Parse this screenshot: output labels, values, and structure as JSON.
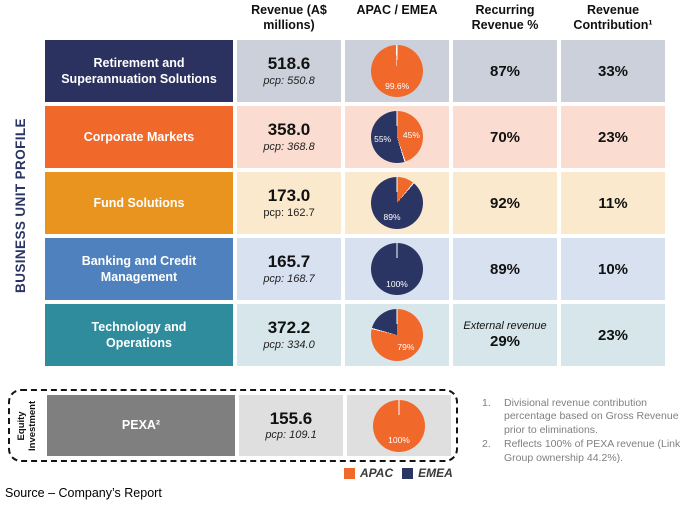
{
  "side_label": "BUSINESS UNIT PROFILE",
  "side_label_color": "#2B3563",
  "header": {
    "columns": [
      "Revenue (A$ millions)",
      "APAC / EMEA",
      "Recurring Revenue %",
      "Revenue Contribution¹"
    ]
  },
  "colors": {
    "apac": "#F1682B",
    "emea": "#2B3563"
  },
  "rows": [
    {
      "name": "Retirement and Superannuation Solutions",
      "revenue": "518.6",
      "pcp": "pcp: 550.8",
      "pcp_italic": true,
      "recurring_note": "",
      "recurring": "87%",
      "contribution": "33%",
      "band_color": "#2B3260",
      "tint_color": "#CBD0DA",
      "pie": [
        {
          "segment": "APAC",
          "value": 99.6,
          "label": "99.6%"
        },
        {
          "segment": "EMEA",
          "value": 0.4,
          "label": ""
        }
      ]
    },
    {
      "name": "Corporate Markets",
      "revenue": "358.0",
      "pcp": "pcp: 368.8",
      "pcp_italic": true,
      "recurring_note": "",
      "recurring": "70%",
      "contribution": "23%",
      "band_color": "#F1682B",
      "tint_color": "#FADCD0",
      "pie": [
        {
          "segment": "APAC",
          "value": 45,
          "label": "45%"
        },
        {
          "segment": "EMEA",
          "value": 55,
          "label": "55%"
        }
      ]
    },
    {
      "name": "Fund Solutions",
      "revenue": "173.0",
      "pcp": "pcp: 162.7",
      "pcp_italic": false,
      "recurring_note": "",
      "recurring": "92%",
      "contribution": "11%",
      "band_color": "#E9941F",
      "tint_color": "#FAE9CD",
      "pie": [
        {
          "segment": "APAC",
          "value": 11,
          "label": ""
        },
        {
          "segment": "EMEA",
          "value": 89,
          "label": "89%"
        }
      ]
    },
    {
      "name": "Banking and Credit Management",
      "revenue": "165.7",
      "pcp": "pcp: 168.7",
      "pcp_italic": true,
      "recurring_note": "",
      "recurring": "89%",
      "contribution": "10%",
      "band_color": "#4E81BD",
      "tint_color": "#D7E1F0",
      "pie": [
        {
          "segment": "EMEA",
          "value": 100,
          "label": "100%"
        }
      ]
    },
    {
      "name": "Technology and Operations",
      "revenue": "372.2",
      "pcp": "pcp: 334.0",
      "pcp_italic": true,
      "recurring_note": "External revenue",
      "recurring": "29%",
      "contribution": "23%",
      "band_color": "#2E8C9D",
      "tint_color": "#D6E6EA",
      "pie": [
        {
          "segment": "APAC",
          "value": 79,
          "label": "79%"
        },
        {
          "segment": "EMEA",
          "value": 21,
          "label": ""
        }
      ]
    }
  ],
  "equity_section": {
    "side_label": "Equity Investment",
    "name": "PEXA²",
    "revenue": "155.6",
    "pcp": "pcp: 109.1",
    "band_color": "#7F7F7F",
    "tint_color": "#DFDFDF",
    "pie": [
      {
        "segment": "APAC",
        "value": 100,
        "label": "100%"
      }
    ]
  },
  "legend": [
    {
      "label": "APAC",
      "color": "#F1682B"
    },
    {
      "label": "EMEA",
      "color": "#2B3563"
    }
  ],
  "footnotes": [
    {
      "num": "1.",
      "text": "Divisional revenue contribution percentage based on Gross Revenue prior to eliminations."
    },
    {
      "num": "2.",
      "text": "Reflects 100% of PEXA revenue (Link Group ownership 44.2%)."
    }
  ],
  "source": "Source – Company’s Report",
  "chart_data": {
    "type": "table",
    "title": "BUSINESS UNIT PROFILE",
    "columns": [
      "Business Unit",
      "Revenue (A$ millions)",
      "pcp Revenue (A$ millions)",
      "APAC %",
      "EMEA %",
      "Recurring Revenue %",
      "Revenue Contribution %"
    ],
    "rows": [
      [
        "Retirement and Superannuation Solutions",
        518.6,
        550.8,
        99.6,
        0.4,
        87,
        33
      ],
      [
        "Corporate Markets",
        358.0,
        368.8,
        45,
        55,
        70,
        23
      ],
      [
        "Fund Solutions",
        173.0,
        162.7,
        11,
        89,
        92,
        11
      ],
      [
        "Banking and Credit Management",
        165.7,
        168.7,
        0,
        100,
        89,
        10
      ],
      [
        "Technology and Operations",
        372.2,
        334.0,
        79,
        21,
        29,
        23
      ],
      [
        "PEXA (Equity Investment)",
        155.6,
        109.1,
        100,
        0,
        null,
        null
      ]
    ],
    "embedded_pie_charts": {
      "type": "pie",
      "legend": [
        "APAC",
        "EMEA"
      ],
      "legend_colors": [
        "#F1682B",
        "#2B3563"
      ],
      "series": [
        {
          "name": "Retirement and Superannuation Solutions",
          "values": {
            "APAC": 99.6,
            "EMEA": 0.4
          }
        },
        {
          "name": "Corporate Markets",
          "values": {
            "APAC": 45,
            "EMEA": 55
          }
        },
        {
          "name": "Fund Solutions",
          "values": {
            "APAC": 11,
            "EMEA": 89
          }
        },
        {
          "name": "Banking and Credit Management",
          "values": {
            "APAC": 0,
            "EMEA": 100
          }
        },
        {
          "name": "Technology and Operations",
          "values": {
            "APAC": 79,
            "EMEA": 21
          }
        },
        {
          "name": "PEXA",
          "values": {
            "APAC": 100,
            "EMEA": 0
          }
        }
      ]
    },
    "annotations": [
      "Technology and Operations Recurring Revenue % shown as External revenue 29%"
    ]
  }
}
